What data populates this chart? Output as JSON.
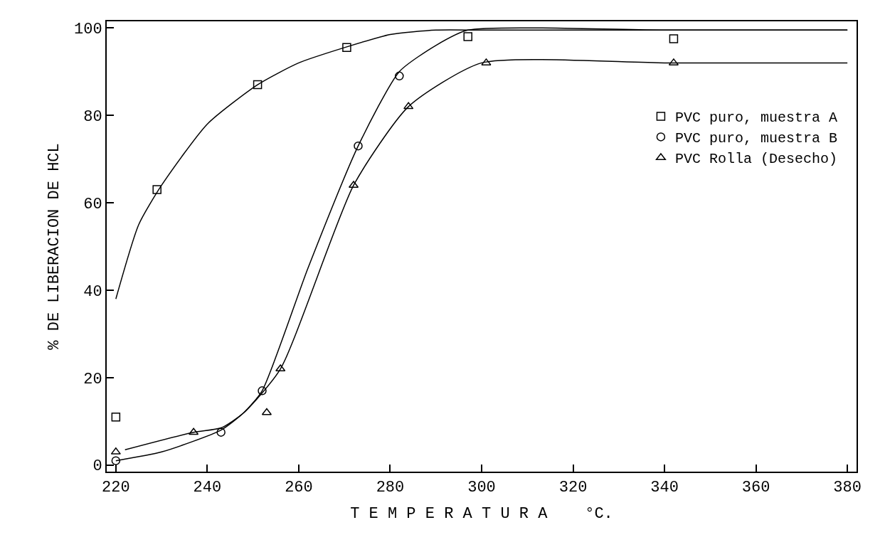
{
  "chart_data": {
    "type": "scatter",
    "xlabel": "T E M P E R A T U R A    °C.",
    "ylabel": "% DE LIBERACION DE HCL",
    "xlim": [
      218,
      382
    ],
    "xticks": [
      220,
      240,
      260,
      280,
      300,
      320,
      340,
      360,
      380
    ],
    "ylim": [
      -1.5,
      101.5
    ],
    "yticks": [
      0,
      20,
      40,
      60,
      80,
      100
    ],
    "legend": "top right",
    "series": [
      {
        "name": "PVC puro, muestra A",
        "color": "#000000",
        "marker": "square",
        "x": [
          220,
          229,
          251,
          270.5,
          297,
          342
        ],
        "values": [
          11,
          63,
          87,
          95.5,
          98,
          97.5
        ]
      },
      {
        "name": "PVC puro, muestra B",
        "color": "#000000",
        "marker": "circle",
        "x": [
          220,
          243,
          252,
          273,
          282
        ],
        "values": [
          1,
          7.5,
          17,
          73,
          89
        ]
      },
      {
        "name": "PVC Rolla (Desecho)",
        "color": "#000000",
        "marker": "triangle",
        "x": [
          220,
          237,
          253,
          256,
          272,
          284,
          301,
          342
        ],
        "values": [
          3,
          7.5,
          12,
          22,
          64,
          82,
          92,
          92
        ]
      },
      {
        "type": "line",
        "color": "#000000",
        "marker": "none",
        "x": [
          220,
          225,
          230,
          240,
          251,
          260,
          270,
          280,
          290,
          300,
          340,
          380
        ],
        "values": [
          38,
          55,
          64,
          78,
          87,
          92,
          95.5,
          98.5,
          99.5,
          99.5,
          99.5,
          99.5
        ]
      },
      {
        "type": "line",
        "color": "#000000",
        "marker": "none",
        "x": [
          220,
          230,
          243,
          248,
          252,
          262,
          273,
          282,
          290,
          297,
          340,
          380
        ],
        "values": [
          1,
          3,
          8,
          12,
          17,
          45,
          73,
          90,
          96,
          99.5,
          99.5,
          99.5
        ]
      },
      {
        "type": "line",
        "color": "#000000",
        "marker": "none",
        "x": [
          222,
          237,
          243,
          248,
          256,
          272,
          284,
          300,
          340,
          380
        ],
        "values": [
          3.5,
          7.5,
          8.5,
          12,
          22,
          64,
          82,
          92,
          92,
          92
        ]
      }
    ]
  }
}
